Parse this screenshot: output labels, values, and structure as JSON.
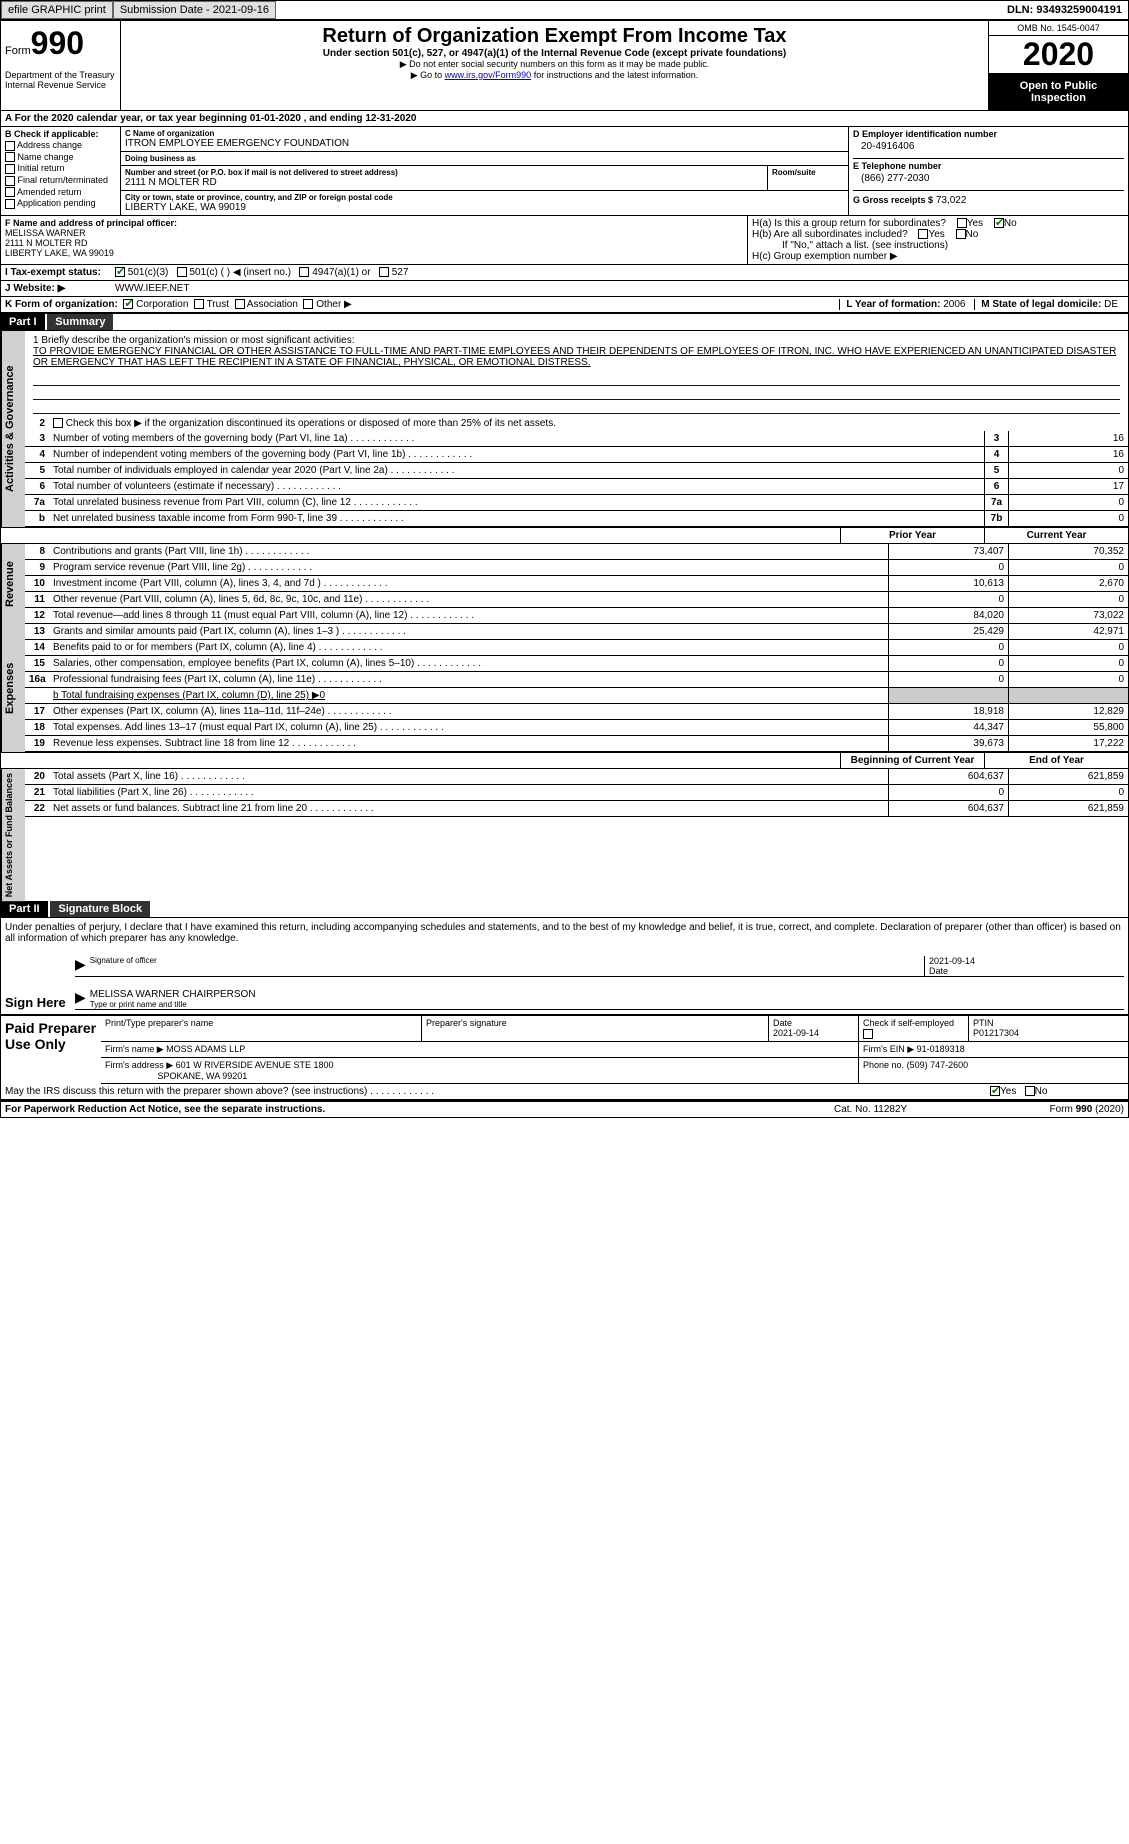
{
  "topbar": {
    "efile": "efile GRAPHIC print",
    "submission": "Submission Date - 2021-09-16",
    "dln": "DLN: 93493259004191"
  },
  "header": {
    "form_label": "Form",
    "form_num": "990",
    "title": "Return of Organization Exempt From Income Tax",
    "subtitle": "Under section 501(c), 527, or 4947(a)(1) of the Internal Revenue Code (except private foundations)",
    "note1": "▶ Do not enter social security numbers on this form as it may be made public.",
    "note2_pre": "▶ Go to ",
    "note2_link": "www.irs.gov/Form990",
    "note2_post": " for instructions and the latest information.",
    "omb": "OMB No. 1545-0047",
    "year": "2020",
    "open": "Open to Public Inspection",
    "dept": "Department of the Treasury\nInternal Revenue Service"
  },
  "period": {
    "text": "A For the 2020 calendar year, or tax year beginning 01-01-2020    , and ending 12-31-2020"
  },
  "boxB": {
    "hdr": "B Check if applicable:",
    "items": [
      "Address change",
      "Name change",
      "Initial return",
      "Final return/terminated",
      "Amended return",
      "Application pending"
    ]
  },
  "boxC": {
    "name_lbl": "C Name of organization",
    "name": "ITRON EMPLOYEE EMERGENCY FOUNDATION",
    "dba_lbl": "Doing business as",
    "dba": "",
    "street_lbl": "Number and street (or P.O. box if mail is not delivered to street address)",
    "street": "2111 N MOLTER RD",
    "room_lbl": "Room/suite",
    "city_lbl": "City or town, state or province, country, and ZIP or foreign postal code",
    "city": "LIBERTY LAKE, WA  99019"
  },
  "boxD": {
    "ein_lbl": "D Employer identification number",
    "ein": "20-4916406",
    "tel_lbl": "E Telephone number",
    "tel": "(866) 277-2030",
    "gross_lbl": "G Gross receipts $",
    "gross": "73,022"
  },
  "boxF": {
    "lbl": "F  Name and address of principal officer:",
    "name": "MELISSA WARNER",
    "addr1": "2111 N MOLTER RD",
    "addr2": "LIBERTY LAKE, WA  99019"
  },
  "boxH": {
    "a": "H(a)  Is this a group return for subordinates?",
    "b": "H(b)  Are all subordinates included?",
    "bnote": "If \"No,\" attach a list. (see instructions)",
    "c": "H(c)  Group exemption number ▶",
    "yes": "Yes",
    "no": "No"
  },
  "status": {
    "lbl": "I   Tax-exempt status:",
    "opts": [
      "501(c)(3)",
      "501(c) (  ) ◀ (insert no.)",
      "4947(a)(1) or",
      "527"
    ]
  },
  "website": {
    "lbl": "J  Website: ▶",
    "val": " WWW.IEEF.NET"
  },
  "korg": {
    "lbl": "K Form of organization:",
    "opts": [
      "Corporation",
      "Trust",
      "Association",
      "Other ▶"
    ],
    "yof_lbl": "L Year of formation:",
    "yof": "2006",
    "dom_lbl": "M State of legal domicile:",
    "dom": "DE"
  },
  "part1": {
    "hdr": "Part I",
    "title": "Summary"
  },
  "mission": {
    "lbl": "1  Briefly describe the organization's mission or most significant activities:",
    "txt": "TO PROVIDE EMERGENCY FINANCIAL OR OTHER ASSISTANCE TO FULL-TIME AND PART-TIME EMPLOYEES AND THEIR DEPENDENTS OF EMPLOYEES OF ITRON, INC. WHO HAVE EXPERIENCED AN UNANTICIPATED DISASTER OR EMERGENCY THAT HAS LEFT THE RECIPIENT IN A STATE OF FINANCIAL, PHYSICAL, OR EMOTIONAL DISTRESS."
  },
  "gov": {
    "side": "Activities & Governance",
    "l2": "Check this box ▶        if the organization discontinued its operations or disposed of more than 25% of its net assets.",
    "lines": [
      {
        "n": "3",
        "d": "Number of voting members of the governing body (Part VI, line 1a)",
        "b": "3",
        "v": "16"
      },
      {
        "n": "4",
        "d": "Number of independent voting members of the governing body (Part VI, line 1b)",
        "b": "4",
        "v": "16"
      },
      {
        "n": "5",
        "d": "Total number of individuals employed in calendar year 2020 (Part V, line 2a)",
        "b": "5",
        "v": "0"
      },
      {
        "n": "6",
        "d": "Total number of volunteers (estimate if necessary)",
        "b": "6",
        "v": "17"
      },
      {
        "n": "7a",
        "d": "Total unrelated business revenue from Part VIII, column (C), line 12",
        "b": "7a",
        "v": "0"
      },
      {
        "n": "b",
        "d": "Net unrelated business taxable income from Form 990-T, line 39",
        "b": "7b",
        "v": "0"
      }
    ]
  },
  "cols": {
    "py": "Prior Year",
    "cy": "Current Year",
    "boy": "Beginning of Current Year",
    "eoy": "End of Year"
  },
  "rev": {
    "side": "Revenue",
    "lines": [
      {
        "n": "8",
        "d": "Contributions and grants (Part VIII, line 1h)",
        "py": "73,407",
        "cy": "70,352"
      },
      {
        "n": "9",
        "d": "Program service revenue (Part VIII, line 2g)",
        "py": "0",
        "cy": "0"
      },
      {
        "n": "10",
        "d": "Investment income (Part VIII, column (A), lines 3, 4, and 7d )",
        "py": "10,613",
        "cy": "2,670"
      },
      {
        "n": "11",
        "d": "Other revenue (Part VIII, column (A), lines 5, 6d, 8c, 9c, 10c, and 11e)",
        "py": "0",
        "cy": "0"
      },
      {
        "n": "12",
        "d": "Total revenue—add lines 8 through 11 (must equal Part VIII, column (A), line 12)",
        "py": "84,020",
        "cy": "73,022"
      }
    ]
  },
  "exp": {
    "side": "Expenses",
    "lines": [
      {
        "n": "13",
        "d": "Grants and similar amounts paid (Part IX, column (A), lines 1–3 )",
        "py": "25,429",
        "cy": "42,971"
      },
      {
        "n": "14",
        "d": "Benefits paid to or for members (Part IX, column (A), line 4)",
        "py": "0",
        "cy": "0"
      },
      {
        "n": "15",
        "d": "Salaries, other compensation, employee benefits (Part IX, column (A), lines 5–10)",
        "py": "0",
        "cy": "0"
      },
      {
        "n": "16a",
        "d": "Professional fundraising fees (Part IX, column (A), line 11e)",
        "py": "0",
        "cy": "0"
      }
    ],
    "l16b": "b  Total fundraising expenses (Part IX, column (D), line 25) ▶0",
    "lines2": [
      {
        "n": "17",
        "d": "Other expenses (Part IX, column (A), lines 11a–11d, 11f–24e)",
        "py": "18,918",
        "cy": "12,829"
      },
      {
        "n": "18",
        "d": "Total expenses. Add lines 13–17 (must equal Part IX, column (A), line 25)",
        "py": "44,347",
        "cy": "55,800"
      },
      {
        "n": "19",
        "d": "Revenue less expenses. Subtract line 18 from line 12",
        "py": "39,673",
        "cy": "17,222"
      }
    ]
  },
  "net": {
    "side": "Net Assets or Fund Balances",
    "lines": [
      {
        "n": "20",
        "d": "Total assets (Part X, line 16)",
        "py": "604,637",
        "cy": "621,859"
      },
      {
        "n": "21",
        "d": "Total liabilities (Part X, line 26)",
        "py": "0",
        "cy": "0"
      },
      {
        "n": "22",
        "d": "Net assets or fund balances. Subtract line 21 from line 20",
        "py": "604,637",
        "cy": "621,859"
      }
    ]
  },
  "part2": {
    "hdr": "Part II",
    "title": "Signature Block"
  },
  "sig": {
    "decl": "Under penalties of perjury, I declare that I have examined this return, including accompanying schedules and statements, and to the best of my knowledge and belief, it is true, correct, and complete. Declaration of preparer (other than officer) is based on all information of which preparer has any knowledge.",
    "here": "Sign Here",
    "sig_lbl": "Signature of officer",
    "date": "2021-09-14",
    "date_lbl": "Date",
    "name": "MELISSA WARNER CHAIRPERSON",
    "name_lbl": "Type or print name and title"
  },
  "prep": {
    "lbl": "Paid Preparer Use Only",
    "h1": "Print/Type preparer's name",
    "h2": "Preparer's signature",
    "h3": "Date",
    "h3v": "2021-09-14",
    "h4": "Check         if self-employed",
    "h5": "PTIN",
    "h5v": "P01217304",
    "firm_lbl": "Firm's name     ▶",
    "firm": "MOSS ADAMS LLP",
    "ein_lbl": "Firm's EIN ▶",
    "ein": "91-0189318",
    "addr_lbl": "Firm's address ▶",
    "addr1": "601 W RIVERSIDE AVENUE STE 1800",
    "addr2": "SPOKANE, WA  99201",
    "ph_lbl": "Phone no.",
    "ph": "(509) 747-2600",
    "discuss": "May the IRS discuss this return with the preparer shown above? (see instructions)"
  },
  "foot": {
    "pra": "For Paperwork Reduction Act Notice, see the separate instructions.",
    "cat": "Cat. No. 11282Y",
    "form": "Form 990 (2020)"
  }
}
